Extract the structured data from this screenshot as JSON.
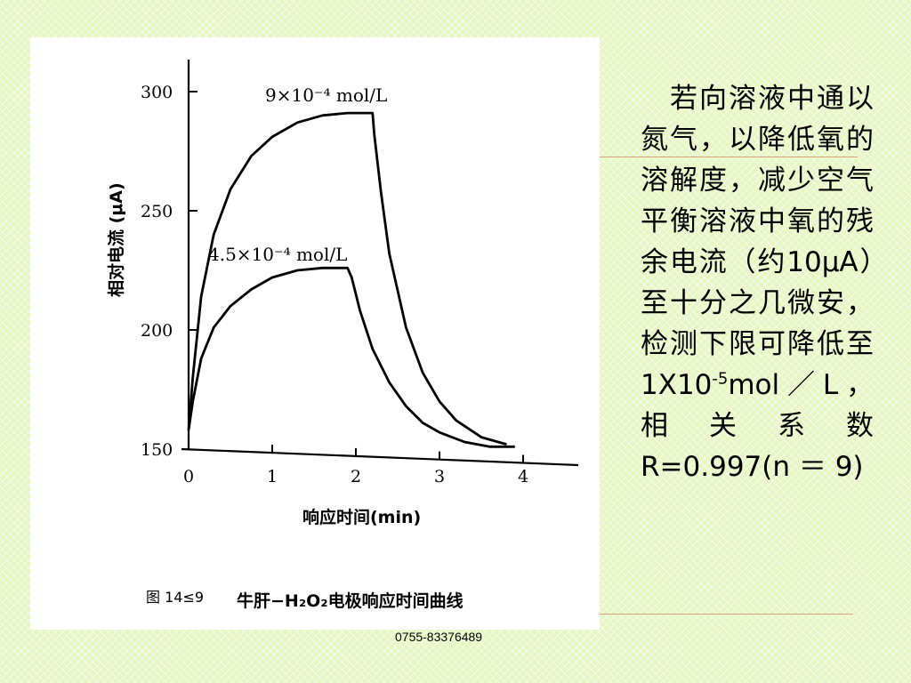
{
  "slide": {
    "paragraph_parts": [
      "　若向溶液中通以氮气，以降低氧的溶解度，减少空气平衡溶液中氧的残余电流（约10μA）至十分之几微安，检测下限可降低至　1X10",
      "-5",
      "mol／L，相关系数R=0.997(n ＝ 9)"
    ],
    "footer_phone": "0755-83376489"
  },
  "chart_data": {
    "type": "line",
    "xlabel": "响应时间(min)",
    "ylabel": "相对电流 (μA)",
    "xlim": [
      0,
      4.6
    ],
    "ylim": [
      150,
      310
    ],
    "x_ticks": [
      "0",
      "1",
      "2",
      "3",
      "4"
    ],
    "y_ticks": [
      "150",
      "200",
      "250",
      "300"
    ],
    "caption_prefix": "图 14≤9",
    "caption_title": "牛肝−H₂O₂电极响应时间曲线",
    "series": [
      {
        "name": "9×10⁻⁴ mol/L",
        "x": [
          0,
          0.05,
          0.15,
          0.3,
          0.5,
          0.75,
          1.0,
          1.3,
          1.6,
          1.9,
          2.2,
          2.22,
          2.3,
          2.4,
          2.6,
          2.8,
          3.0,
          3.2,
          3.5,
          3.8
        ],
        "y": [
          158,
          180,
          214,
          240,
          259,
          273,
          281,
          287,
          290,
          291,
          291,
          282,
          258,
          232,
          201,
          182,
          170,
          162,
          155,
          152
        ]
      },
      {
        "name": "4.5×10⁻⁴ mol/L",
        "x": [
          0,
          0.05,
          0.15,
          0.3,
          0.5,
          0.75,
          1.0,
          1.3,
          1.6,
          1.9,
          1.95,
          2.05,
          2.2,
          2.4,
          2.6,
          2.8,
          3.0,
          3.3,
          3.6,
          3.9
        ],
        "y": [
          158,
          170,
          188,
          201,
          210,
          217,
          222,
          225,
          226,
          226,
          222,
          208,
          192,
          178,
          168,
          161,
          157,
          153,
          151,
          151
        ]
      }
    ]
  }
}
